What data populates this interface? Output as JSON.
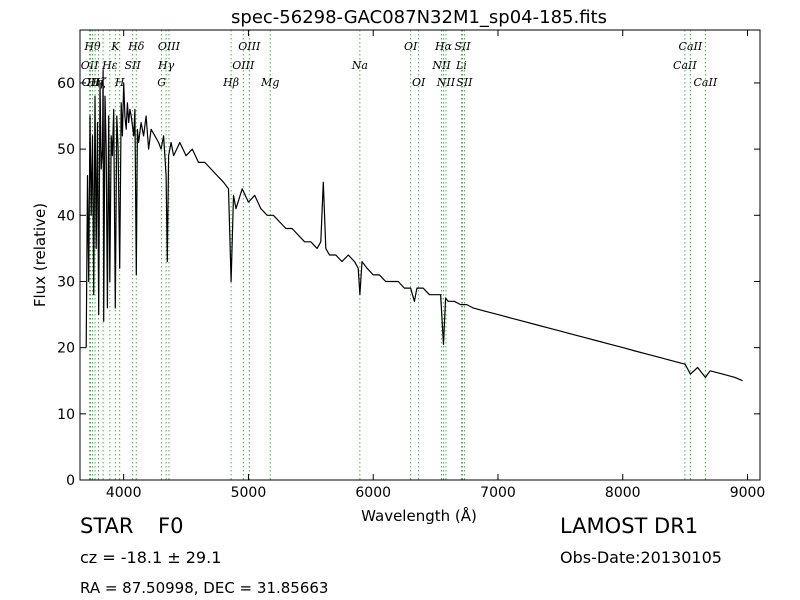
{
  "chart_data": {
    "type": "line",
    "title": "spec-56298-GAC087N32M1_sp04-185.fits",
    "xlabel": "Wavelength (Å)",
    "ylabel": "Flux (relative)",
    "xlim": [
      3650,
      9100
    ],
    "ylim": [
      0,
      68
    ],
    "xticks": [
      4000,
      5000,
      6000,
      7000,
      8000,
      9000
    ],
    "yticks": [
      0,
      10,
      20,
      30,
      40,
      50,
      60
    ],
    "grid": false,
    "line_color": "#000000",
    "marker_color": "#4caf50",
    "series": [
      {
        "x": [
          3700,
          3710,
          3720,
          3730,
          3740,
          3750,
          3760,
          3770,
          3780,
          3790,
          3800,
          3810,
          3820,
          3830,
          3835,
          3840,
          3850,
          3860,
          3870,
          3880,
          3889,
          3900,
          3910,
          3920,
          3933,
          3945,
          3955,
          3968,
          3980,
          3990,
          4000,
          4010,
          4020,
          4030,
          4040,
          4050,
          4060,
          4080,
          4090,
          4101,
          4110,
          4120,
          4140,
          4160,
          4180,
          4200,
          4220,
          4250,
          4280,
          4300,
          4320,
          4340,
          4350,
          4360,
          4380,
          4400,
          4450,
          4500,
          4550,
          4600,
          4650,
          4700,
          4750,
          4800,
          4840,
          4861,
          4880,
          4900,
          4950,
          5000,
          5050,
          5100,
          5150,
          5200,
          5250,
          5300,
          5350,
          5400,
          5450,
          5500,
          5550,
          5580,
          5600,
          5620,
          5650,
          5700,
          5750,
          5800,
          5850,
          5880,
          5893,
          5910,
          5950,
          6000,
          6050,
          6100,
          6150,
          6200,
          6250,
          6300,
          6330,
          6350,
          6400,
          6450,
          6500,
          6540,
          6563,
          6580,
          6600,
          6650,
          6700,
          6750,
          6800,
          6900,
          7000,
          7100,
          7200,
          7300,
          7400,
          7500,
          7600,
          7700,
          7800,
          7900,
          8000,
          8100,
          8200,
          8300,
          8400,
          8500,
          8542,
          8600,
          8662,
          8700,
          8800,
          8900,
          8960
        ],
        "values": [
          20,
          46,
          30,
          55,
          40,
          52,
          28,
          58,
          35,
          54,
          25,
          60,
          47,
          50,
          62,
          24,
          58,
          50,
          26,
          55,
          30,
          52,
          49,
          56,
          26,
          55,
          50,
          32,
          57,
          52,
          60,
          55,
          53,
          57,
          54,
          56,
          55,
          52,
          56,
          31,
          53,
          51,
          54,
          52,
          55,
          50,
          53,
          52,
          51,
          50,
          52,
          46,
          33,
          49,
          51,
          49,
          51,
          49,
          50,
          48,
          48,
          47,
          46,
          45,
          44,
          30,
          43,
          41,
          44,
          42,
          43,
          41,
          40,
          40,
          39,
          38,
          38,
          37,
          36,
          36,
          35,
          36,
          45,
          35,
          34,
          34,
          33,
          34,
          33,
          32,
          28,
          33,
          32,
          31,
          31,
          30,
          30,
          30,
          29,
          29,
          27,
          29,
          29,
          28,
          28,
          28,
          20.5,
          27.5,
          27,
          27,
          26.5,
          26.5,
          26,
          25.5,
          25,
          24.5,
          24,
          23.5,
          23,
          22.5,
          22,
          21.5,
          21,
          20.5,
          20,
          19.5,
          19,
          18.5,
          18,
          17.5,
          16,
          17,
          15.5,
          16.5,
          16,
          15.5,
          15
        ]
      }
    ],
    "line_markers": [
      {
        "x": 3727,
        "label": "OII",
        "row": 2
      },
      {
        "x": 3734,
        "label": "OII",
        "row": 3
      },
      {
        "x": 3750,
        "label": "Hθ",
        "row": 1
      },
      {
        "x": 3771,
        "label": "Hη",
        "row": 3
      },
      {
        "x": 3798,
        "label": "Hζ",
        "row": 3
      },
      {
        "x": 3835,
        "label": "",
        "row": 0
      },
      {
        "x": 3889,
        "label": "Hε",
        "row": 2
      },
      {
        "x": 3933,
        "label": "K",
        "row": 1
      },
      {
        "x": 3968,
        "label": "H",
        "row": 3
      },
      {
        "x": 4072,
        "label": "SII",
        "row": 2
      },
      {
        "x": 4101,
        "label": "Hδ",
        "row": 1
      },
      {
        "x": 4304,
        "label": "G",
        "row": 3
      },
      {
        "x": 4340,
        "label": "Hγ",
        "row": 2
      },
      {
        "x": 4363,
        "label": "OIII",
        "row": 1
      },
      {
        "x": 4861,
        "label": "Hβ",
        "row": 3
      },
      {
        "x": 4959,
        "label": "OIII",
        "row": 2
      },
      {
        "x": 5007,
        "label": "OIII",
        "row": 1
      },
      {
        "x": 5175,
        "label": "Mg",
        "row": 3
      },
      {
        "x": 5893,
        "label": "Na",
        "row": 2
      },
      {
        "x": 6300,
        "label": "OI",
        "row": 1
      },
      {
        "x": 6364,
        "label": "OI",
        "row": 3
      },
      {
        "x": 6548,
        "label": "NII",
        "row": 2
      },
      {
        "x": 6563,
        "label": "Hα",
        "row": 1
      },
      {
        "x": 6583,
        "label": "NII",
        "row": 3
      },
      {
        "x": 6707,
        "label": "Li",
        "row": 2
      },
      {
        "x": 6716,
        "label": "SII",
        "row": 1
      },
      {
        "x": 6731,
        "label": "SII",
        "row": 3
      },
      {
        "x": 8498,
        "label": "CaII",
        "row": 2
      },
      {
        "x": 8542,
        "label": "CaII",
        "row": 1
      },
      {
        "x": 8662,
        "label": "CaII",
        "row": 3
      }
    ]
  },
  "info": {
    "object_class": "STAR",
    "subclass": "F0",
    "survey": "LAMOST DR1",
    "redshift": "cz = -18.1 ± 29.1",
    "obs_date": "Obs-Date:20130105",
    "coords": "RA = 87.50998, DEC = 31.85663"
  }
}
